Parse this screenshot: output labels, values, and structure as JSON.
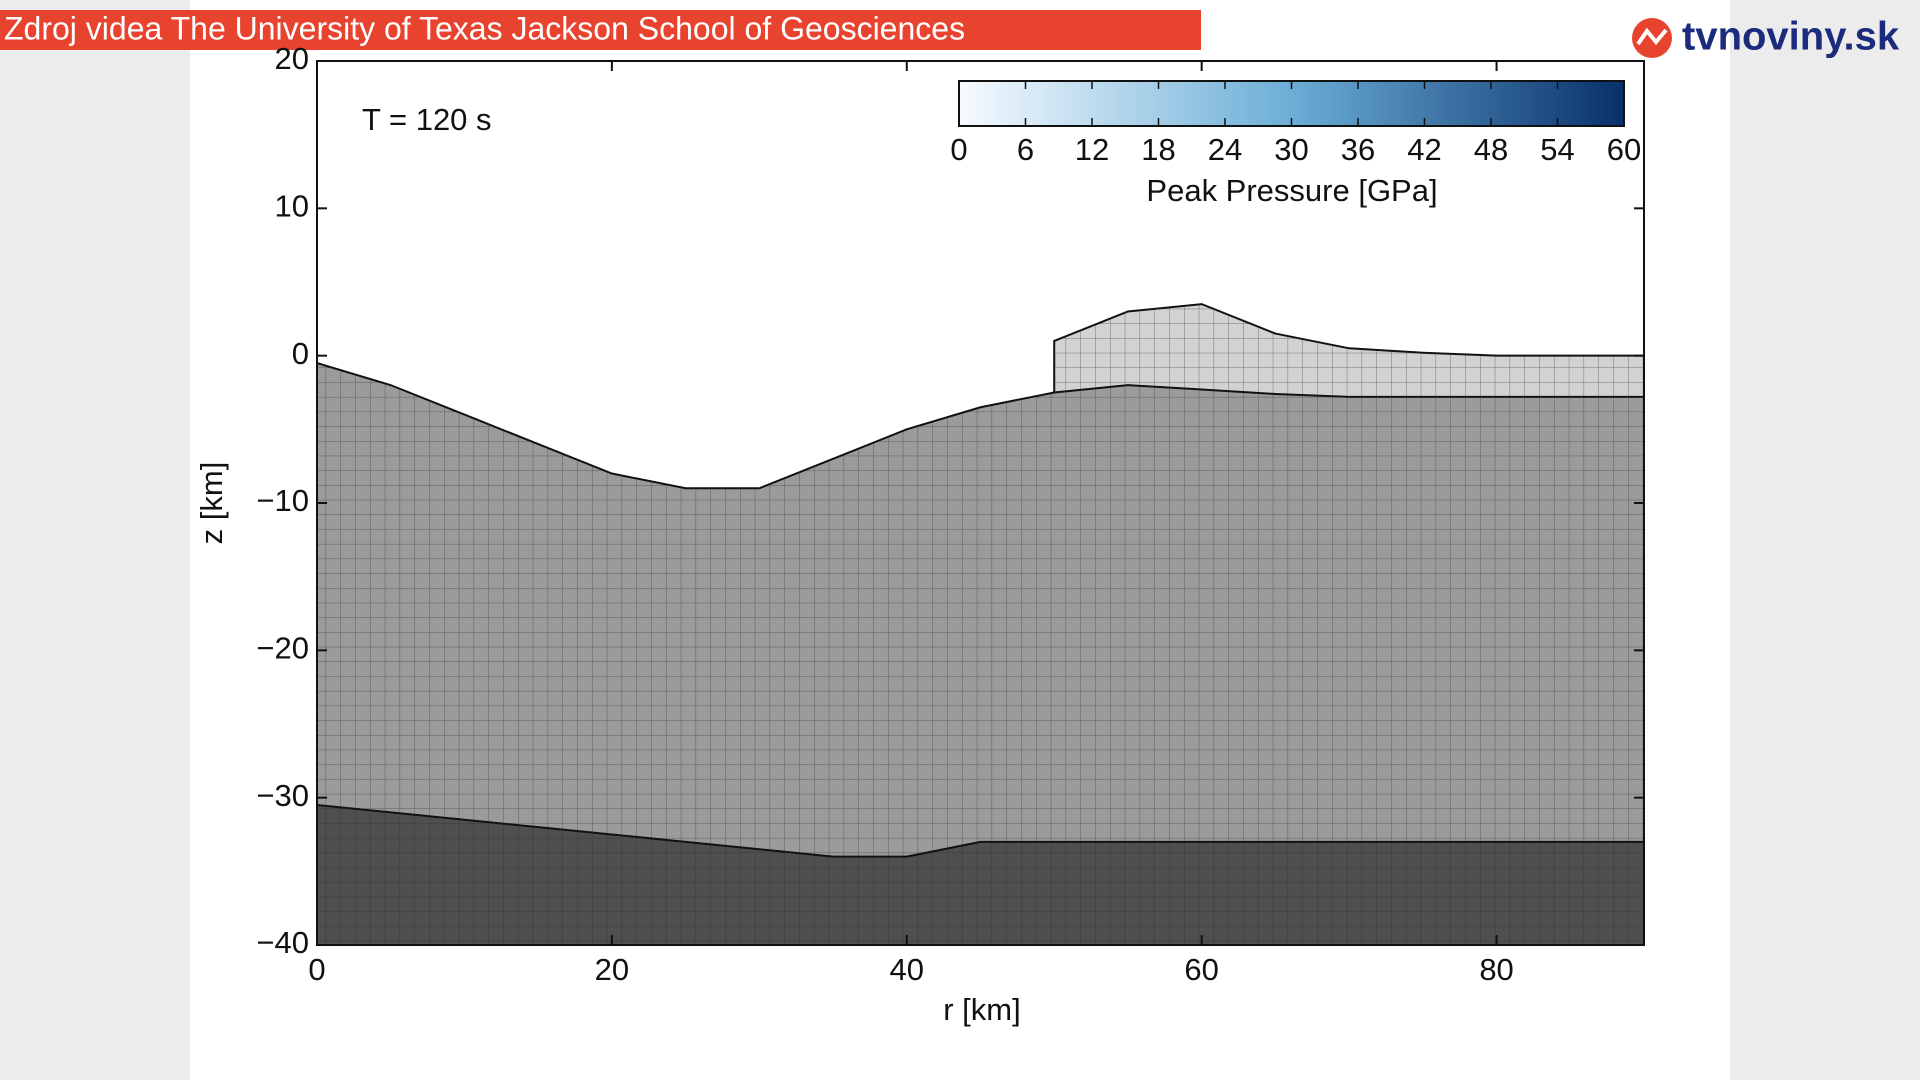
{
  "header": {
    "source": "Zdroj videa The University of Texas Jackson School of Geosciences",
    "logo": "tvnoviny.sk"
  },
  "chart_data": {
    "type": "area",
    "annotation": "T =  120 s",
    "xlabel": "r [km]",
    "ylabel": "z [km]",
    "xlim": [
      0,
      90
    ],
    "ylim": [
      -40,
      20
    ],
    "xticks": [
      0,
      20,
      40,
      60,
      80
    ],
    "yticks": [
      20,
      10,
      0,
      {
        "value": -10,
        "label": "−10"
      },
      {
        "value": -20,
        "label": "−20"
      },
      {
        "value": -30,
        "label": "−30"
      },
      {
        "value": -40,
        "label": "−40"
      }
    ],
    "x": [
      0,
      5,
      10,
      15,
      20,
      25,
      30,
      35,
      40,
      45,
      50,
      55,
      60,
      65,
      70,
      75,
      80,
      85,
      90
    ],
    "series": [
      {
        "color": "#d2d2d2",
        "values": [
          null,
          null,
          null,
          null,
          null,
          null,
          null,
          null,
          null,
          null,
          1,
          3,
          3.5,
          1.5,
          0.5,
          0.2,
          0,
          0,
          0
        ]
      },
      {
        "color": "#9b9b9b",
        "values": [
          -0.5,
          -2,
          -4,
          -6,
          -8,
          -9,
          -9,
          -7,
          -5,
          -3.5,
          -2.5,
          -2,
          -2.3,
          -2.6,
          -2.8,
          -2.8,
          -2.8,
          -2.8,
          -2.8
        ]
      },
      {
        "color": "#4f4f4f",
        "values": [
          -30.5,
          -31,
          -31.5,
          -32,
          -32.5,
          -33,
          -33.5,
          -34,
          -34,
          -33,
          -33,
          -33,
          -33,
          -33,
          -33,
          -33,
          -33,
          -33,
          -33
        ]
      }
    ],
    "colorbar": {
      "label": "Peak Pressure [GPa]",
      "lim": [
        0,
        60
      ],
      "ticks": [
        0,
        6,
        12,
        18,
        24,
        30,
        36,
        42,
        48,
        54,
        60
      ],
      "colors": [
        "#f7fbff",
        "#6baed6",
        "#08306b"
      ]
    }
  }
}
